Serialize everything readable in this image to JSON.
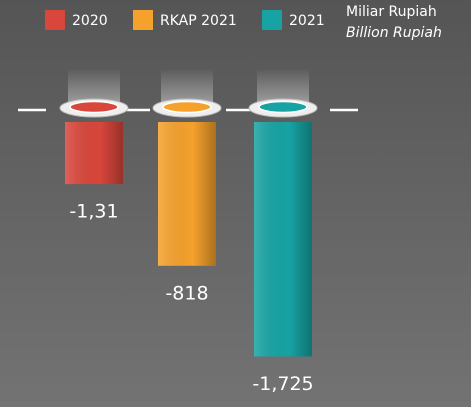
{
  "chart_data": {
    "type": "bar",
    "unit_label": "Miliar Rupiah",
    "unit_label_en": "Billion Rupiah",
    "series": [
      {
        "name": "2020",
        "color": "#d9463b",
        "values": [
          -1.31
        ],
        "value_labels": [
          "-1,31"
        ]
      },
      {
        "name": "RKAP 2021",
        "color": "#f5a12c",
        "values": [
          -818
        ],
        "value_labels": [
          "-818"
        ]
      },
      {
        "name": "2021",
        "color": "#17a3a3",
        "values": [
          -1725
        ],
        "value_labels": [
          "-1,725"
        ]
      }
    ]
  }
}
